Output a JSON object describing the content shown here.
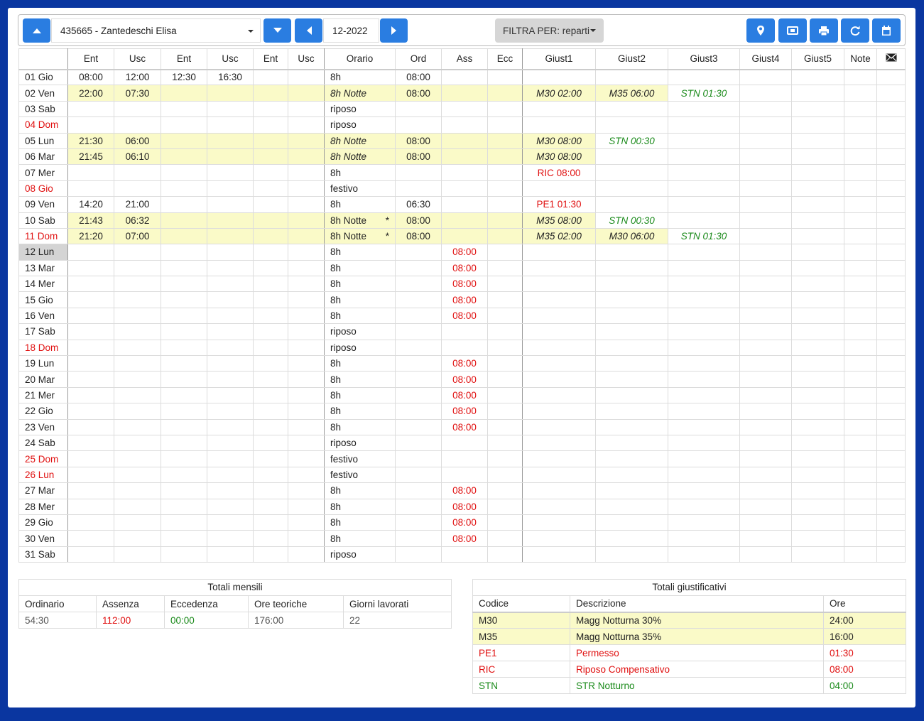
{
  "toolbar": {
    "employee": "435665 - Zantedeschi Elisa",
    "month": "12-2022",
    "filter": "FILTRA PER: reparti"
  },
  "table": {
    "headers": [
      null,
      "Ent",
      "Usc",
      "Ent",
      "Usc",
      "Ent",
      "Usc",
      "Orario",
      "Ord",
      "Ass",
      "Ecc",
      "Giust1",
      "Giust2",
      "Giust3",
      "Giust4",
      "Giust5",
      "Note"
    ],
    "rows": [
      [
        "01 Gio",
        "08:00",
        "12:00",
        "12:30",
        "16:30",
        null,
        null,
        "8h",
        "08:00",
        null,
        null,
        null,
        null,
        null,
        null,
        null,
        null
      ],
      [
        "02 Ven",
        "22:00",
        "07:30",
        null,
        null,
        null,
        null,
        "8h Notte",
        "08:00",
        null,
        null,
        "M30 02:00",
        "M35 06:00",
        "STN 01:30",
        null,
        null,
        null
      ],
      [
        "03 Sab",
        null,
        null,
        null,
        null,
        null,
        null,
        "riposo",
        null,
        null,
        null,
        null,
        null,
        null,
        null,
        null,
        null
      ],
      [
        "04 Dom",
        null,
        null,
        null,
        null,
        null,
        null,
        "riposo",
        null,
        null,
        null,
        null,
        null,
        null,
        null,
        null,
        null
      ],
      [
        "05 Lun",
        "21:30",
        "06:00",
        null,
        null,
        null,
        null,
        "8h Notte",
        "08:00",
        null,
        null,
        "M30 08:00",
        "STN 00:30",
        null,
        null,
        null,
        null
      ],
      [
        "06 Mar",
        "21:45",
        "06:10",
        null,
        null,
        null,
        null,
        "8h Notte",
        "08:00",
        null,
        null,
        "M30 08:00",
        null,
        null,
        null,
        null,
        null
      ],
      [
        "07 Mer",
        null,
        null,
        null,
        null,
        null,
        null,
        "8h",
        null,
        null,
        null,
        "RIC 08:00",
        null,
        null,
        null,
        null,
        null
      ],
      [
        "08 Gio",
        null,
        null,
        null,
        null,
        null,
        null,
        "festivo",
        null,
        null,
        null,
        null,
        null,
        null,
        null,
        null,
        null
      ],
      [
        "09 Ven",
        "14:20",
        "21:00",
        null,
        null,
        null,
        null,
        "8h",
        "06:30",
        null,
        null,
        "PE1 01:30",
        null,
        null,
        null,
        null,
        null
      ],
      [
        "10 Sab",
        "21:43",
        "06:32",
        null,
        null,
        null,
        null,
        {
          "text": "8h Notte",
          "mark": "*"
        },
        "08:00",
        null,
        null,
        "M35 08:00",
        "STN 00:30",
        null,
        null,
        null,
        null
      ],
      [
        "11 Dom",
        "21:20",
        "07:00",
        null,
        null,
        null,
        null,
        {
          "text": "8h Notte",
          "mark": "*"
        },
        "08:00",
        null,
        null,
        "M35 02:00",
        "M30 06:00",
        "STN 01:30",
        null,
        null,
        null
      ],
      [
        "12 Lun",
        null,
        null,
        null,
        null,
        null,
        null,
        "8h",
        null,
        "08:00",
        null,
        null,
        null,
        null,
        null,
        null,
        null
      ],
      [
        "13 Mar",
        null,
        null,
        null,
        null,
        null,
        null,
        "8h",
        null,
        "08:00",
        null,
        null,
        null,
        null,
        null,
        null,
        null
      ],
      [
        "14 Mer",
        null,
        null,
        null,
        null,
        null,
        null,
        "8h",
        null,
        "08:00",
        null,
        null,
        null,
        null,
        null,
        null,
        null
      ],
      [
        "15 Gio",
        null,
        null,
        null,
        null,
        null,
        null,
        "8h",
        null,
        "08:00",
        null,
        null,
        null,
        null,
        null,
        null,
        null
      ],
      [
        "16 Ven",
        null,
        null,
        null,
        null,
        null,
        null,
        "8h",
        null,
        "08:00",
        null,
        null,
        null,
        null,
        null,
        null,
        null
      ],
      [
        "17 Sab",
        null,
        null,
        null,
        null,
        null,
        null,
        "riposo",
        null,
        null,
        null,
        null,
        null,
        null,
        null,
        null,
        null
      ],
      [
        "18 Dom",
        null,
        null,
        null,
        null,
        null,
        null,
        "riposo",
        null,
        null,
        null,
        null,
        null,
        null,
        null,
        null,
        null
      ],
      [
        "19 Lun",
        null,
        null,
        null,
        null,
        null,
        null,
        "8h",
        null,
        "08:00",
        null,
        null,
        null,
        null,
        null,
        null,
        null
      ],
      [
        "20 Mar",
        null,
        null,
        null,
        null,
        null,
        null,
        "8h",
        null,
        "08:00",
        null,
        null,
        null,
        null,
        null,
        null,
        null
      ],
      [
        "21 Mer",
        null,
        null,
        null,
        null,
        null,
        null,
        "8h",
        null,
        "08:00",
        null,
        null,
        null,
        null,
        null,
        null,
        null
      ],
      [
        "22 Gio",
        null,
        null,
        null,
        null,
        null,
        null,
        "8h",
        null,
        "08:00",
        null,
        null,
        null,
        null,
        null,
        null,
        null
      ],
      [
        "23 Ven",
        null,
        null,
        null,
        null,
        null,
        null,
        "8h",
        null,
        "08:00",
        null,
        null,
        null,
        null,
        null,
        null,
        null
      ],
      [
        "24 Sab",
        null,
        null,
        null,
        null,
        null,
        null,
        "riposo",
        null,
        null,
        null,
        null,
        null,
        null,
        null,
        null,
        null
      ],
      [
        "25 Dom",
        null,
        null,
        null,
        null,
        null,
        null,
        "festivo",
        null,
        null,
        null,
        null,
        null,
        null,
        null,
        null,
        null
      ],
      [
        "26 Lun",
        null,
        null,
        null,
        null,
        null,
        null,
        "festivo",
        null,
        null,
        null,
        null,
        null,
        null,
        null,
        null,
        null
      ],
      [
        "27 Mar",
        null,
        null,
        null,
        null,
        null,
        null,
        "8h",
        null,
        "08:00",
        null,
        null,
        null,
        null,
        null,
        null,
        null
      ],
      [
        "28 Mer",
        null,
        null,
        null,
        null,
        null,
        null,
        "8h",
        null,
        "08:00",
        null,
        null,
        null,
        null,
        null,
        null,
        null
      ],
      [
        "29 Gio",
        null,
        null,
        null,
        null,
        null,
        null,
        "8h",
        null,
        "08:00",
        null,
        null,
        null,
        null,
        null,
        null,
        null
      ],
      [
        "30 Ven",
        null,
        null,
        null,
        null,
        null,
        null,
        "8h",
        null,
        "08:00",
        null,
        null,
        null,
        null,
        null,
        null,
        null
      ],
      [
        "31 Sab",
        null,
        null,
        null,
        null,
        null,
        null,
        "riposo",
        null,
        null,
        null,
        null,
        null,
        null,
        null,
        null,
        null
      ]
    ]
  },
  "monthly_totals": {
    "title": "Totali mensili",
    "headers": [
      "Ordinario",
      "Assenza",
      "Eccedenza",
      "Ore teoriche",
      "Giorni lavorati"
    ],
    "values": [
      "54:30",
      "112:00",
      "00:00",
      "176:00",
      "22"
    ]
  },
  "justification_totals": {
    "title": "Totali giustificativi",
    "headers": [
      "Codice",
      "Descrizione",
      "Ore"
    ],
    "rows": [
      [
        "M30",
        "Magg Notturna 30%",
        "24:00"
      ],
      [
        "M35",
        "Magg Notturna 35%",
        "16:00"
      ],
      [
        "PE1",
        "Permesso",
        "01:30"
      ],
      [
        "RIC",
        "Riposo Compensativo",
        "08:00"
      ],
      [
        "STN",
        "STR Notturno",
        "04:00"
      ]
    ]
  }
}
